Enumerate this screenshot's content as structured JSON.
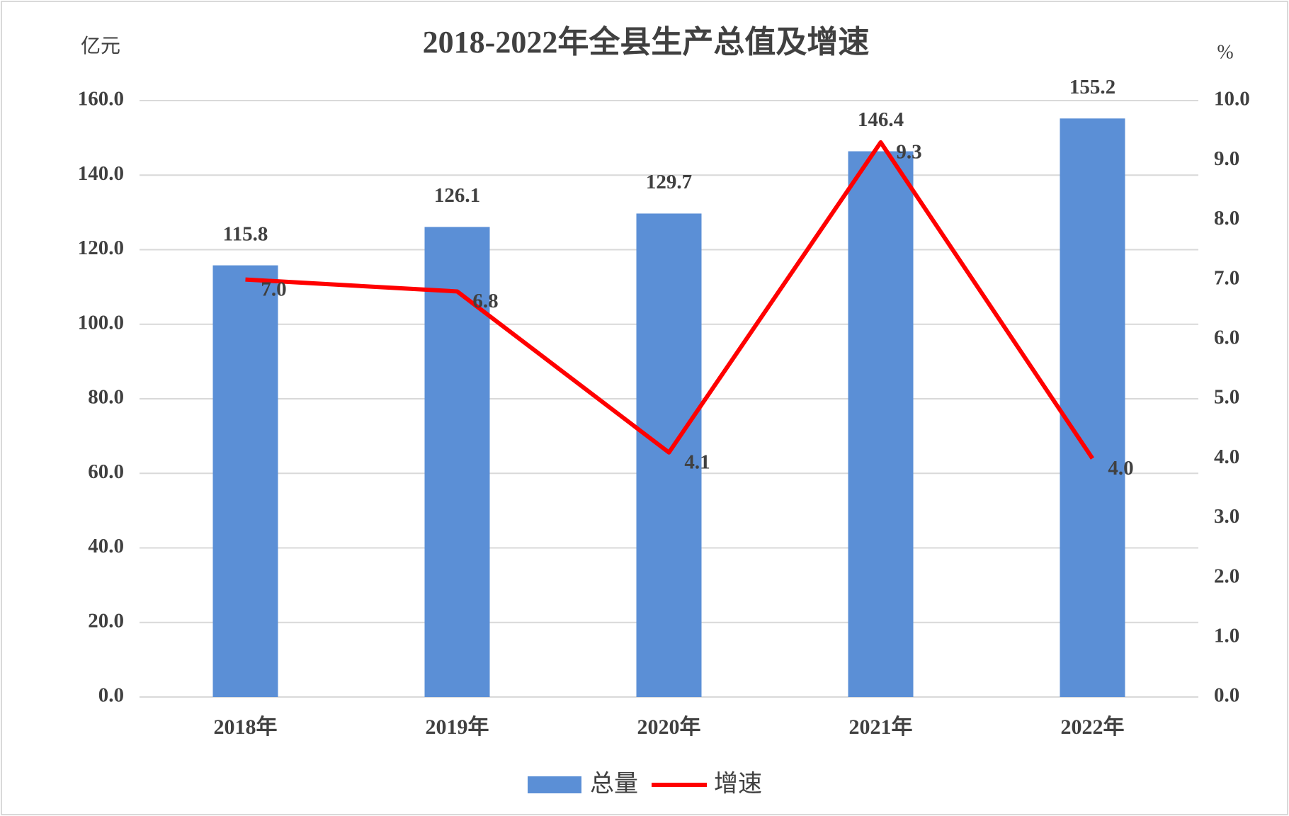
{
  "chart_data": {
    "type": "bar",
    "title": "2018-2022年全县生产总值及增速",
    "y_label": "亿元",
    "y2_label": "%",
    "categories": [
      "2018年",
      "2019年",
      "2020年",
      "2021年",
      "2022年"
    ],
    "series": [
      {
        "name": "总量",
        "color": "#5b8fd6",
        "values": [
          115.8,
          126.1,
          129.7,
          146.4,
          155.2
        ]
      },
      {
        "name": "增速",
        "type": "line",
        "axis": "y2",
        "color": "#ff0000",
        "values": [
          7.0,
          6.8,
          4.1,
          9.3,
          4.0
        ],
        "value_labels": [
          "7.0",
          "6.8",
          "4.1",
          "9.3",
          "4.0"
        ]
      }
    ],
    "ylim": [
      0,
      160
    ],
    "yticks": [
      {
        "value": 0,
        "label": "0.0"
      },
      {
        "value": 20,
        "label": "20.0"
      },
      {
        "value": 40,
        "label": "40.0"
      },
      {
        "value": 60,
        "label": "60.0"
      },
      {
        "value": 80,
        "label": "80.0"
      },
      {
        "value": 100,
        "label": "100.0"
      },
      {
        "value": 120,
        "label": "120.0"
      },
      {
        "value": 140,
        "label": "140.0"
      },
      {
        "value": 160,
        "label": "160.0"
      }
    ],
    "y2lim": [
      0,
      10
    ],
    "y2ticks": [
      {
        "value": 0,
        "label": "0.0"
      },
      {
        "value": 1,
        "label": "1.0"
      },
      {
        "value": 2,
        "label": "2.0"
      },
      {
        "value": 3,
        "label": "3.0"
      },
      {
        "value": 4,
        "label": "4.0"
      },
      {
        "value": 5,
        "label": "5.0"
      },
      {
        "value": 6,
        "label": "6.0"
      },
      {
        "value": 7,
        "label": "7.0"
      },
      {
        "value": 8,
        "label": "8.0"
      },
      {
        "value": 9,
        "label": "9.0"
      },
      {
        "value": 10,
        "label": "10.0"
      }
    ],
    "grid": true,
    "legend": "bottom"
  }
}
